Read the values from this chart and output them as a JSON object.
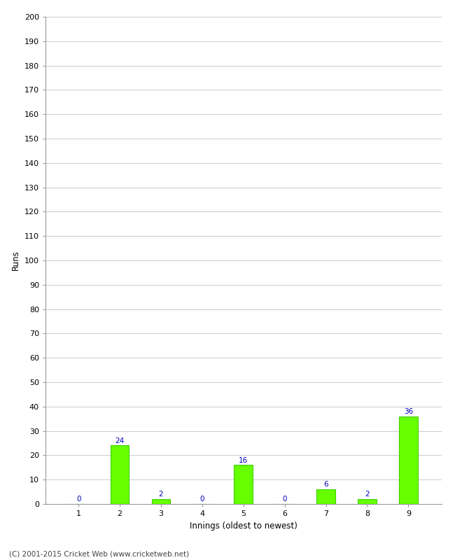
{
  "innings": [
    1,
    2,
    3,
    4,
    5,
    6,
    7,
    8,
    9
  ],
  "runs": [
    0,
    24,
    2,
    0,
    16,
    0,
    6,
    2,
    36
  ],
  "bar_color": "#66ff00",
  "bar_edge_color": "#44cc00",
  "label_color": "#0000bb",
  "xlabel": "Innings (oldest to newest)",
  "ylabel": "Runs",
  "ylim": [
    0,
    200
  ],
  "ytick_step": 10,
  "background_color": "#ffffff",
  "grid_color": "#cccccc",
  "footer_text": "(C) 2001-2015 Cricket Web (www.cricketweb.net)",
  "label_fontsize": 7.5,
  "axis_tick_fontsize": 8,
  "axis_label_fontsize": 8.5,
  "footer_fontsize": 7.5,
  "bar_width": 0.45
}
